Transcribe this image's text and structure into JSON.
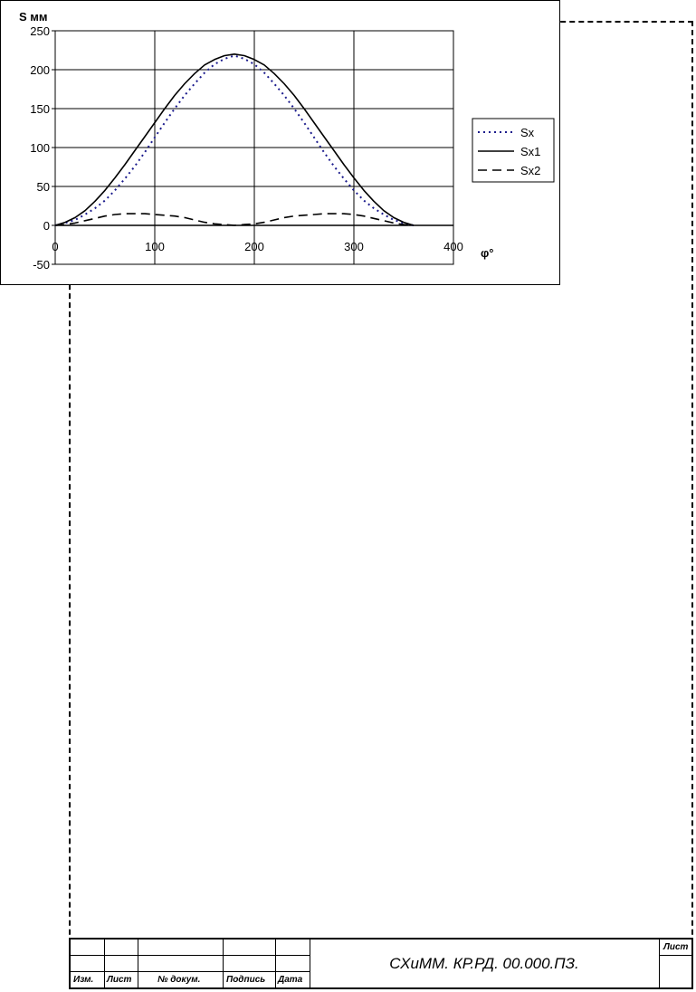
{
  "chart_data": {
    "type": "line",
    "ylabel": "S мм",
    "xlabel": "φ°",
    "xlim": [
      0,
      400
    ],
    "ylim": [
      -50,
      250
    ],
    "x_ticks": [
      "0",
      "100",
      "200",
      "300",
      "400"
    ],
    "y_ticks": [
      "250",
      "200",
      "150",
      "100",
      "50",
      "0",
      "-50"
    ],
    "grid": true,
    "legend_position": "right",
    "x": [
      0,
      10,
      20,
      30,
      40,
      50,
      60,
      70,
      80,
      90,
      100,
      110,
      120,
      130,
      140,
      150,
      160,
      170,
      180,
      190,
      200,
      210,
      220,
      230,
      240,
      250,
      260,
      270,
      280,
      290,
      300,
      310,
      320,
      330,
      340,
      350,
      360
    ],
    "series": [
      {
        "name": "Sx",
        "style": "dotted",
        "color": "#1a1a8c",
        "values": [
          0,
          3,
          7,
          14,
          22,
          32,
          45,
          60,
          76,
          94,
          113,
          132,
          150,
          167,
          182,
          196,
          207,
          214,
          218,
          214,
          207,
          196,
          182,
          167,
          150,
          132,
          113,
          94,
          76,
          60,
          45,
          32,
          22,
          14,
          7,
          3,
          0
        ]
      },
      {
        "name": "Sx1",
        "style": "solid",
        "color": "#000000",
        "values": [
          0,
          4,
          10,
          19,
          31,
          45,
          61,
          78,
          96,
          114,
          132,
          150,
          167,
          182,
          195,
          206,
          213,
          218,
          220,
          218,
          213,
          206,
          195,
          182,
          167,
          150,
          132,
          114,
          96,
          78,
          61,
          45,
          31,
          19,
          10,
          4,
          0
        ]
      },
      {
        "name": "Sx2",
        "style": "dashed",
        "color": "#000000",
        "values": [
          0,
          1,
          3,
          6,
          9,
          12,
          14,
          15,
          15,
          15,
          14,
          13,
          12,
          10,
          7,
          4,
          2,
          1,
          0,
          1,
          2,
          4,
          7,
          10,
          12,
          13,
          14,
          15,
          15,
          15,
          14,
          12,
          9,
          6,
          3,
          1,
          0
        ]
      }
    ]
  },
  "title_block": {
    "doc_code": "СХиММ. КР.РД. 00.000.ПЗ.",
    "sheet_label": "Лист",
    "col_izm": "Изм.",
    "col_list": "Лист",
    "col_docnum": "№ докум.",
    "col_sign": "Подпись",
    "col_date": "Дата"
  }
}
